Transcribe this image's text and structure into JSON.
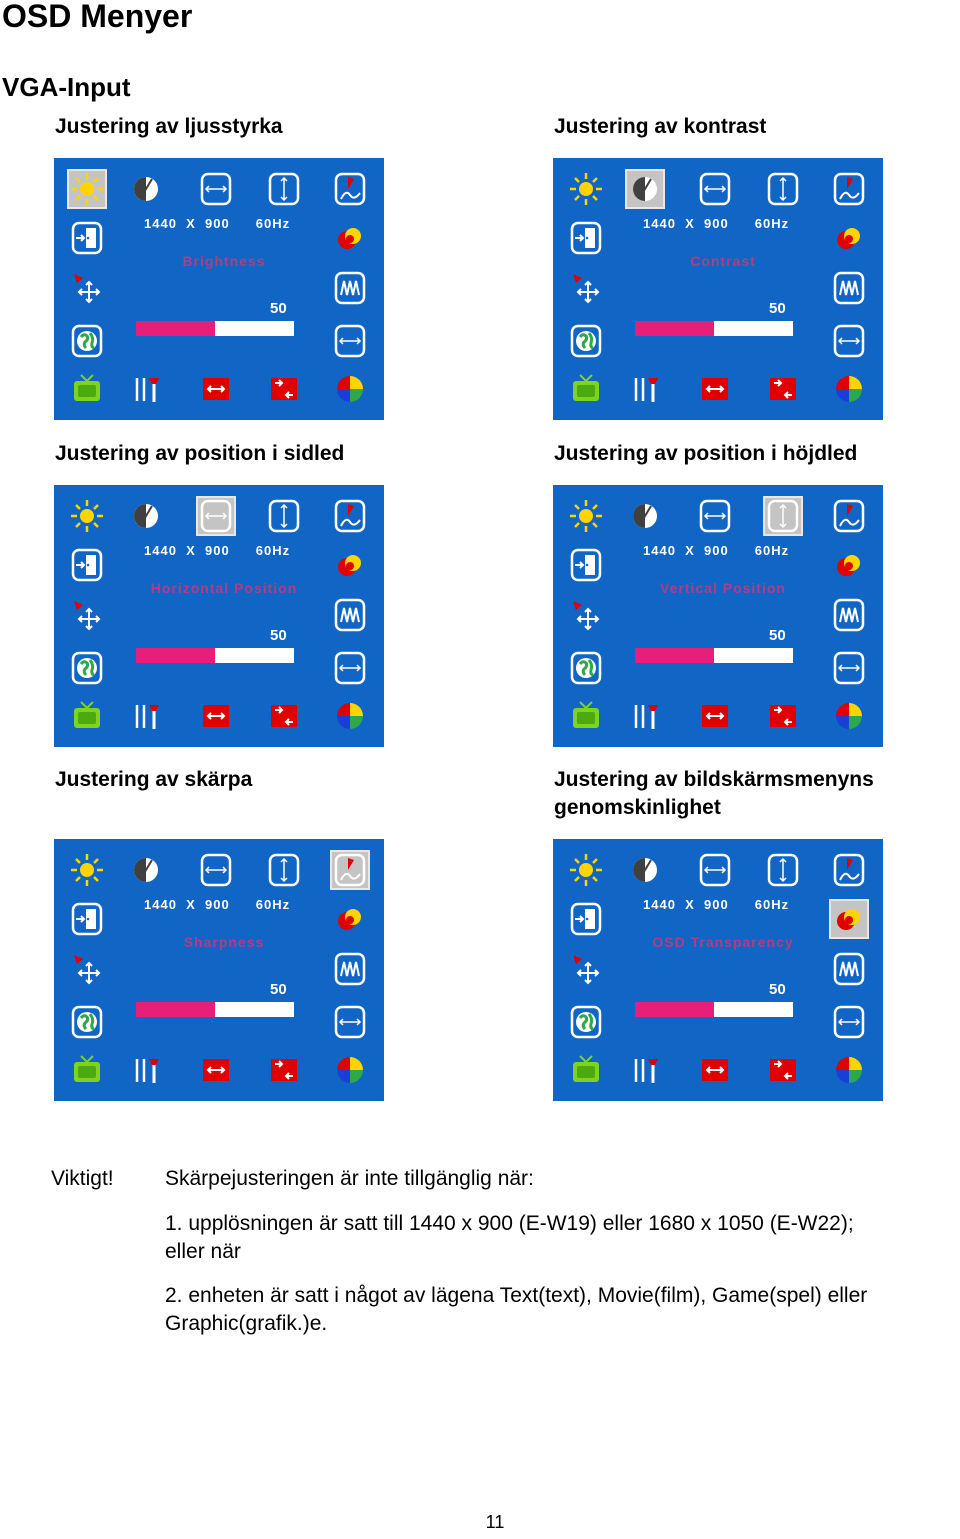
{
  "title": "OSD Menyer",
  "subtitle": "VGA-Input",
  "panels": [
    {
      "caption": "Justering av ljusstyrka",
      "resolution": "1440  X  900",
      "refresh": "60Hz",
      "function": "Brightness",
      "value": "50",
      "level": 0.5,
      "selected": "brightness-icon"
    },
    {
      "caption": "Justering av kontrast",
      "resolution": "1440  X  900",
      "refresh": "60Hz",
      "function": "Contrast",
      "value": "50",
      "level": 0.5,
      "selected": "contrast-icon"
    },
    {
      "caption": "Justering av position i sidled",
      "resolution": "1440  X  900",
      "refresh": "60Hz",
      "function": "Horizontal Position",
      "value": "50",
      "level": 0.5,
      "selected": "h-position-icon"
    },
    {
      "caption": "Justering av position i höjdled",
      "resolution": "1440  X  900",
      "refresh": "60Hz",
      "function": "Vertical Position",
      "value": "50",
      "level": 0.5,
      "selected": "v-position-icon"
    },
    {
      "caption": "Justering av skärpa",
      "resolution": "1440  X  900",
      "refresh": "60Hz",
      "function": "Sharpness",
      "value": "50",
      "level": 0.5,
      "selected": "sharpness-icon"
    },
    {
      "caption_line1": "Justering av bildskärmsmenyns",
      "caption_line2": "genomskinlighet",
      "resolution": "1440  X  900",
      "refresh": "60Hz",
      "function": "OSD Transparency",
      "value": "50",
      "level": 0.5,
      "selected": "osd-transparency-icon"
    }
  ],
  "note": {
    "label": "Viktigt!",
    "intro": "Skärpejusteringen är inte tillgänglig när:",
    "item1_line1": "1. upplösningen är satt till 1440 x 900 (E-W19) eller 1680 x 1050 (E-W22);",
    "item1_line2": "eller när",
    "item2_line1": "2. enheten är satt i något av lägena Text(text), Movie(film), Game(spel) eller",
    "item2_line2": "Graphic(grafik.)e."
  },
  "page_number": "11",
  "colors": {
    "osd_bg": "#1165c4",
    "bar_fill": "#e6207a",
    "bar_bg": "#ffffff",
    "function_text": "#e8306a",
    "selected_bg": "#c4c4c4"
  }
}
